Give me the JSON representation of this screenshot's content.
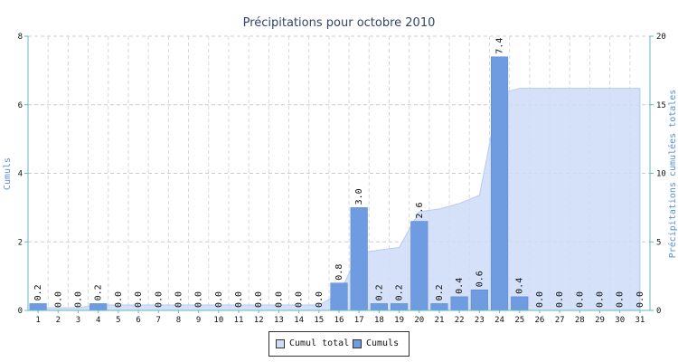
{
  "chart_data": {
    "type": "bar",
    "title": "Précipitations pour octobre 2010",
    "ylabel": "Cumuls",
    "y2label": "Précipitations cumulées totales",
    "categories": [
      "1",
      "2",
      "3",
      "4",
      "5",
      "6",
      "7",
      "8",
      "9",
      "10",
      "11",
      "12",
      "13",
      "14",
      "15",
      "16",
      "17",
      "18",
      "19",
      "20",
      "21",
      "22",
      "23",
      "24",
      "25",
      "26",
      "27",
      "28",
      "29",
      "30",
      "31"
    ],
    "ylim": [
      0,
      8
    ],
    "y2lim": [
      0,
      20
    ],
    "yticks": [
      "0",
      "2",
      "4",
      "6",
      "8"
    ],
    "y2ticks": [
      "0",
      "5",
      "10",
      "15",
      "20"
    ],
    "grid": true,
    "legend_position": "bottom",
    "series": [
      {
        "name": "Cumuls",
        "type": "bar",
        "axis": "left",
        "color": "#6f9be0",
        "values": [
          0.2,
          0.0,
          0.0,
          0.2,
          0.0,
          0.0,
          0.0,
          0.0,
          0.0,
          0.0,
          0.0,
          0.0,
          0.0,
          0.0,
          0.0,
          0.8,
          3.0,
          0.2,
          0.2,
          2.6,
          0.2,
          0.4,
          0.6,
          7.4,
          0.4,
          0.0,
          0.0,
          0.0,
          0.0,
          0.0,
          0.0
        ],
        "labels": [
          "0.2",
          "0.0",
          "0.0",
          "0.2",
          "0.0",
          "0.0",
          "0.0",
          "0.0",
          "0.0",
          "0.0",
          "0.0",
          "0.0",
          "0.0",
          "0.0",
          "0.0",
          "0.8",
          "3.0",
          "0.2",
          "0.2",
          "2.6",
          "0.2",
          "0.4",
          "0.6",
          "7.4",
          "0.4",
          "0.0",
          "0.0",
          "0.0",
          "0.0",
          "0.0",
          "0.0"
        ]
      },
      {
        "name": "Cumul total",
        "type": "area",
        "axis": "right",
        "color": "#cddcf7",
        "values": [
          0.2,
          0.2,
          0.2,
          0.4,
          0.4,
          0.4,
          0.4,
          0.4,
          0.4,
          0.4,
          0.4,
          0.4,
          0.4,
          0.4,
          0.4,
          1.2,
          4.2,
          4.4,
          4.6,
          7.2,
          7.4,
          7.8,
          8.4,
          15.8,
          16.2,
          16.2,
          16.2,
          16.2,
          16.2,
          16.2,
          16.2
        ]
      }
    ]
  },
  "legend": {
    "items": [
      {
        "label": "Cumul total",
        "color": "#cddcf7"
      },
      {
        "label": "Cumuls",
        "color": "#6f9be0"
      }
    ]
  }
}
